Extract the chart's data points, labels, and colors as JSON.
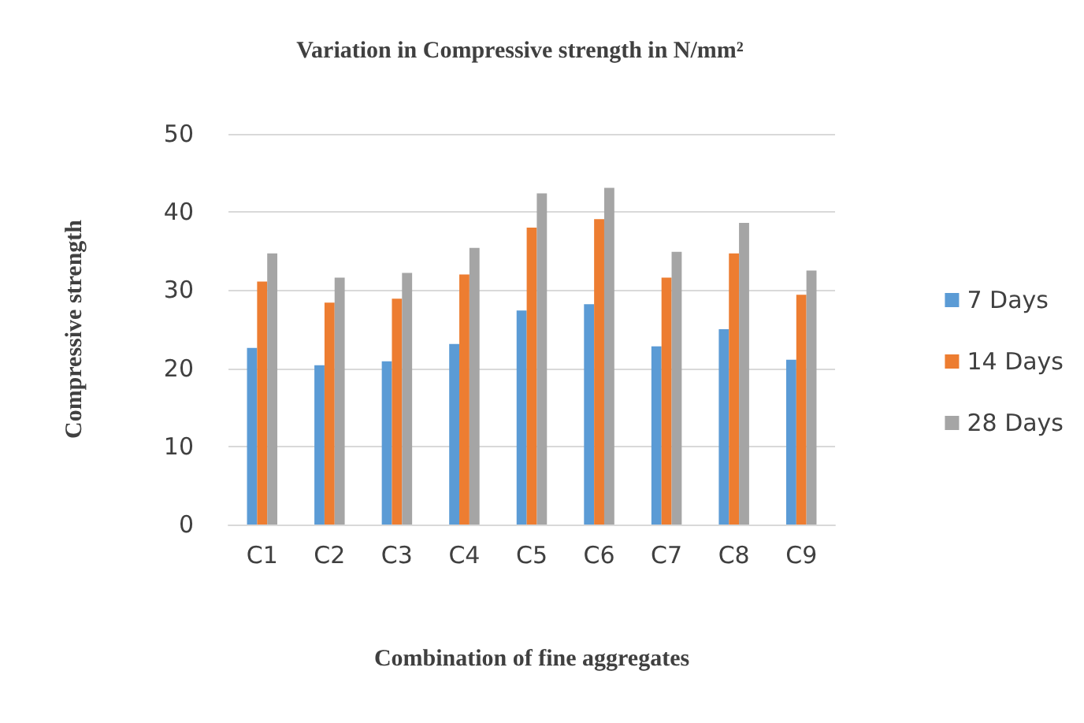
{
  "chart_data": {
    "type": "bar",
    "title": "Variation in Compressive strength in N/mm²",
    "xlabel": "Combination of fine aggregates",
    "ylabel": "Compressive strength",
    "categories": [
      "C1",
      "C2",
      "C3",
      "C4",
      "C5",
      "C6",
      "C7",
      "C8",
      "C9"
    ],
    "series": [
      {
        "name": "7 Days",
        "color": "#5b9bd5",
        "values": [
          22.6,
          20.4,
          20.9,
          23.1,
          27.4,
          28.2,
          22.8,
          25.0,
          21.1
        ]
      },
      {
        "name": "14 Days",
        "color": "#ed7d31",
        "values": [
          31.1,
          28.4,
          28.9,
          32.0,
          38.0,
          39.1,
          31.6,
          34.7,
          29.4
        ]
      },
      {
        "name": "28 Days",
        "color": "#a5a5a5",
        "values": [
          34.7,
          31.6,
          32.2,
          35.4,
          42.4,
          43.1,
          34.9,
          38.6,
          32.5
        ]
      }
    ],
    "ylim": [
      0,
      50
    ],
    "yticks": [
      0,
      10,
      20,
      30,
      40,
      50
    ],
    "grid": "y",
    "legend": "right"
  }
}
